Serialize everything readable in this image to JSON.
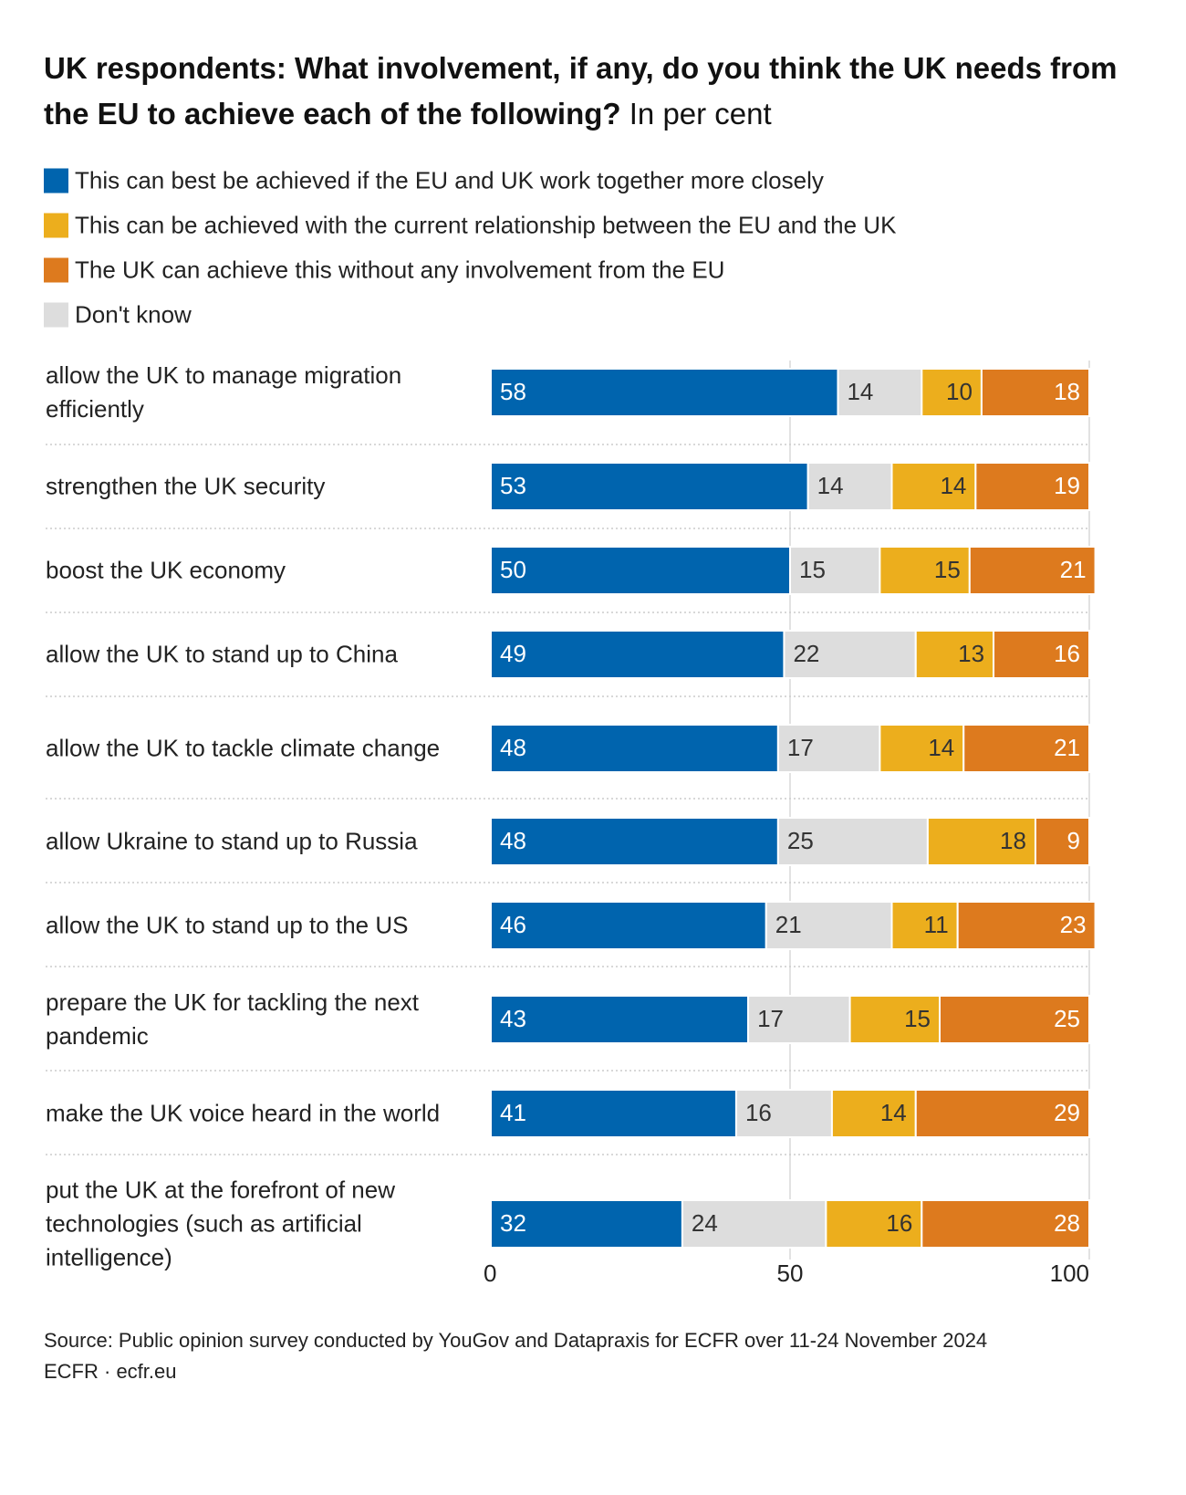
{
  "chart_data": {
    "type": "stacked-bar-horizontal",
    "title": "UK respondents: What involvement, if any, do you think the UK needs from the EU to achieve each of the following?",
    "subtitle": "In per cent",
    "categories": [
      "allow the UK to manage migration efficiently",
      "strengthen the UK security",
      "boost the UK economy",
      "allow the UK to stand up to China",
      "allow the UK to tackle climate change",
      "allow Ukraine to stand up to Russia",
      "allow the UK to stand up to the US",
      "prepare the UK for tackling the next pandemic",
      "make the UK voice heard in the world",
      "put the UK at the forefront of new technologies (such as artificial intelligence)"
    ],
    "series": [
      {
        "name": "This can best be achieved if the EU and UK work together more closely",
        "color": "#0064ae",
        "values": [
          58,
          53,
          50,
          49,
          48,
          48,
          46,
          43,
          41,
          32
        ]
      },
      {
        "name": "This can be achieved with the current relationship between the EU and the UK",
        "color": "#ecae1d",
        "values": [
          10,
          14,
          15,
          13,
          14,
          18,
          11,
          15,
          14,
          16
        ]
      },
      {
        "name": "The UK can achieve this without any involvement from the EU",
        "color": "#dd7a1e",
        "values": [
          18,
          19,
          21,
          16,
          21,
          9,
          23,
          25,
          29,
          28
        ]
      },
      {
        "name": "Don't know",
        "color": "#dddddd",
        "values": [
          14,
          14,
          15,
          22,
          17,
          25,
          21,
          17,
          16,
          24
        ]
      }
    ],
    "stack_order": [
      0,
      3,
      1,
      2
    ],
    "xlim": [
      0,
      100
    ],
    "xticks": [
      0,
      50,
      100
    ],
    "grid": true,
    "source": "Source: Public opinion survey conducted by YouGov and Datapraxis for ECFR over 11-24 November 2024",
    "credit": "ECFR · ecfr.eu"
  }
}
